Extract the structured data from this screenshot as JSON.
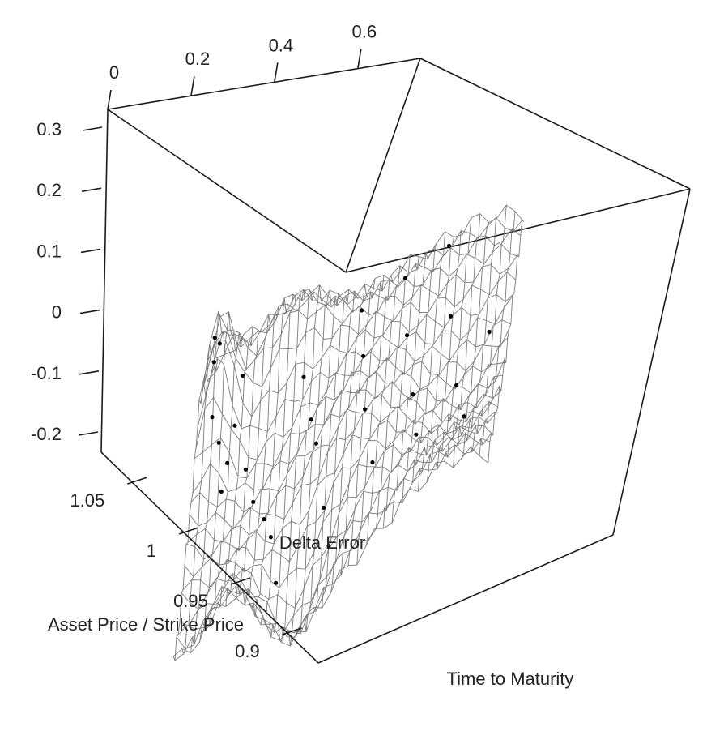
{
  "chart_data": {
    "type": "surface-3d",
    "title": "",
    "axes": {
      "x": {
        "label": "Time to Maturity",
        "ticks": [
          0,
          0.2,
          0.4,
          0.6
        ],
        "tick_labels": [
          "0",
          "0.2",
          "0.4",
          "0.6"
        ],
        "range": [
          0,
          0.75
        ]
      },
      "y": {
        "label": "Asset Price / Strike Price",
        "ticks": [
          0.9,
          0.95,
          1,
          1.05
        ],
        "tick_labels": [
          "0.9",
          "0.95",
          "1",
          "1.05"
        ],
        "range": [
          0.87,
          1.08
        ]
      },
      "z": {
        "label": "Delta Error",
        "ticks": [
          -0.2,
          -0.1,
          0,
          0.1,
          0.2,
          0.3
        ],
        "tick_labels": [
          "-0.2",
          "-0.1",
          "0",
          "0.1",
          "0.2",
          "0.3"
        ],
        "range": [
          -0.25,
          0.35
        ]
      }
    },
    "surface": {
      "style": "wireframe",
      "color": "#7a7a7a",
      "description": "fitted delta error surface over time to maturity and moneyness"
    },
    "points": {
      "color": "#000000",
      "values": [
        {
          "t": 0.02,
          "m": 1.06,
          "z": -0.07
        },
        {
          "t": 0.03,
          "m": 1.04,
          "z": -0.12
        },
        {
          "t": 0.05,
          "m": 1.02,
          "z": -0.09
        },
        {
          "t": 0.04,
          "m": 1.0,
          "z": 0.05
        },
        {
          "t": 0.06,
          "m": 0.99,
          "z": 0.16
        },
        {
          "t": 0.07,
          "m": 0.98,
          "z": 0.2
        },
        {
          "t": 0.08,
          "m": 0.99,
          "z": 0.12
        },
        {
          "t": 0.09,
          "m": 1.01,
          "z": -0.03
        },
        {
          "t": 0.1,
          "m": 1.03,
          "z": -0.1
        },
        {
          "t": 0.12,
          "m": 1.0,
          "z": -0.05
        },
        {
          "t": 0.15,
          "m": 0.97,
          "z": -0.02
        },
        {
          "t": 0.18,
          "m": 0.96,
          "z": 0.01
        },
        {
          "t": 0.2,
          "m": 0.95,
          "z": -0.08
        },
        {
          "t": 0.22,
          "m": 0.93,
          "z": -0.13
        },
        {
          "t": 0.25,
          "m": 1.02,
          "z": -0.04
        },
        {
          "t": 0.28,
          "m": 0.99,
          "z": 0.02
        },
        {
          "t": 0.3,
          "m": 0.97,
          "z": -0.06
        },
        {
          "t": 0.33,
          "m": 0.94,
          "z": -0.11
        },
        {
          "t": 0.35,
          "m": 0.92,
          "z": -0.15
        },
        {
          "t": 0.38,
          "m": 1.04,
          "z": 0.09
        },
        {
          "t": 0.4,
          "m": 1.0,
          "z": 0.06
        },
        {
          "t": 0.42,
          "m": 0.96,
          "z": 0.03
        },
        {
          "t": 0.45,
          "m": 0.93,
          "z": -0.04
        },
        {
          "t": 0.48,
          "m": 1.05,
          "z": 0.1
        },
        {
          "t": 0.5,
          "m": 1.01,
          "z": 0.05
        },
        {
          "t": 0.53,
          "m": 0.97,
          "z": 0.0
        },
        {
          "t": 0.55,
          "m": 0.94,
          "z": -0.03
        },
        {
          "t": 0.58,
          "m": 1.06,
          "z": 0.11
        },
        {
          "t": 0.6,
          "m": 1.02,
          "z": 0.07
        },
        {
          "t": 0.63,
          "m": 0.98,
          "z": 0.02
        },
        {
          "t": 0.66,
          "m": 0.95,
          "z": -0.02
        },
        {
          "t": 0.7,
          "m": 1.0,
          "z": 0.04
        }
      ]
    }
  }
}
